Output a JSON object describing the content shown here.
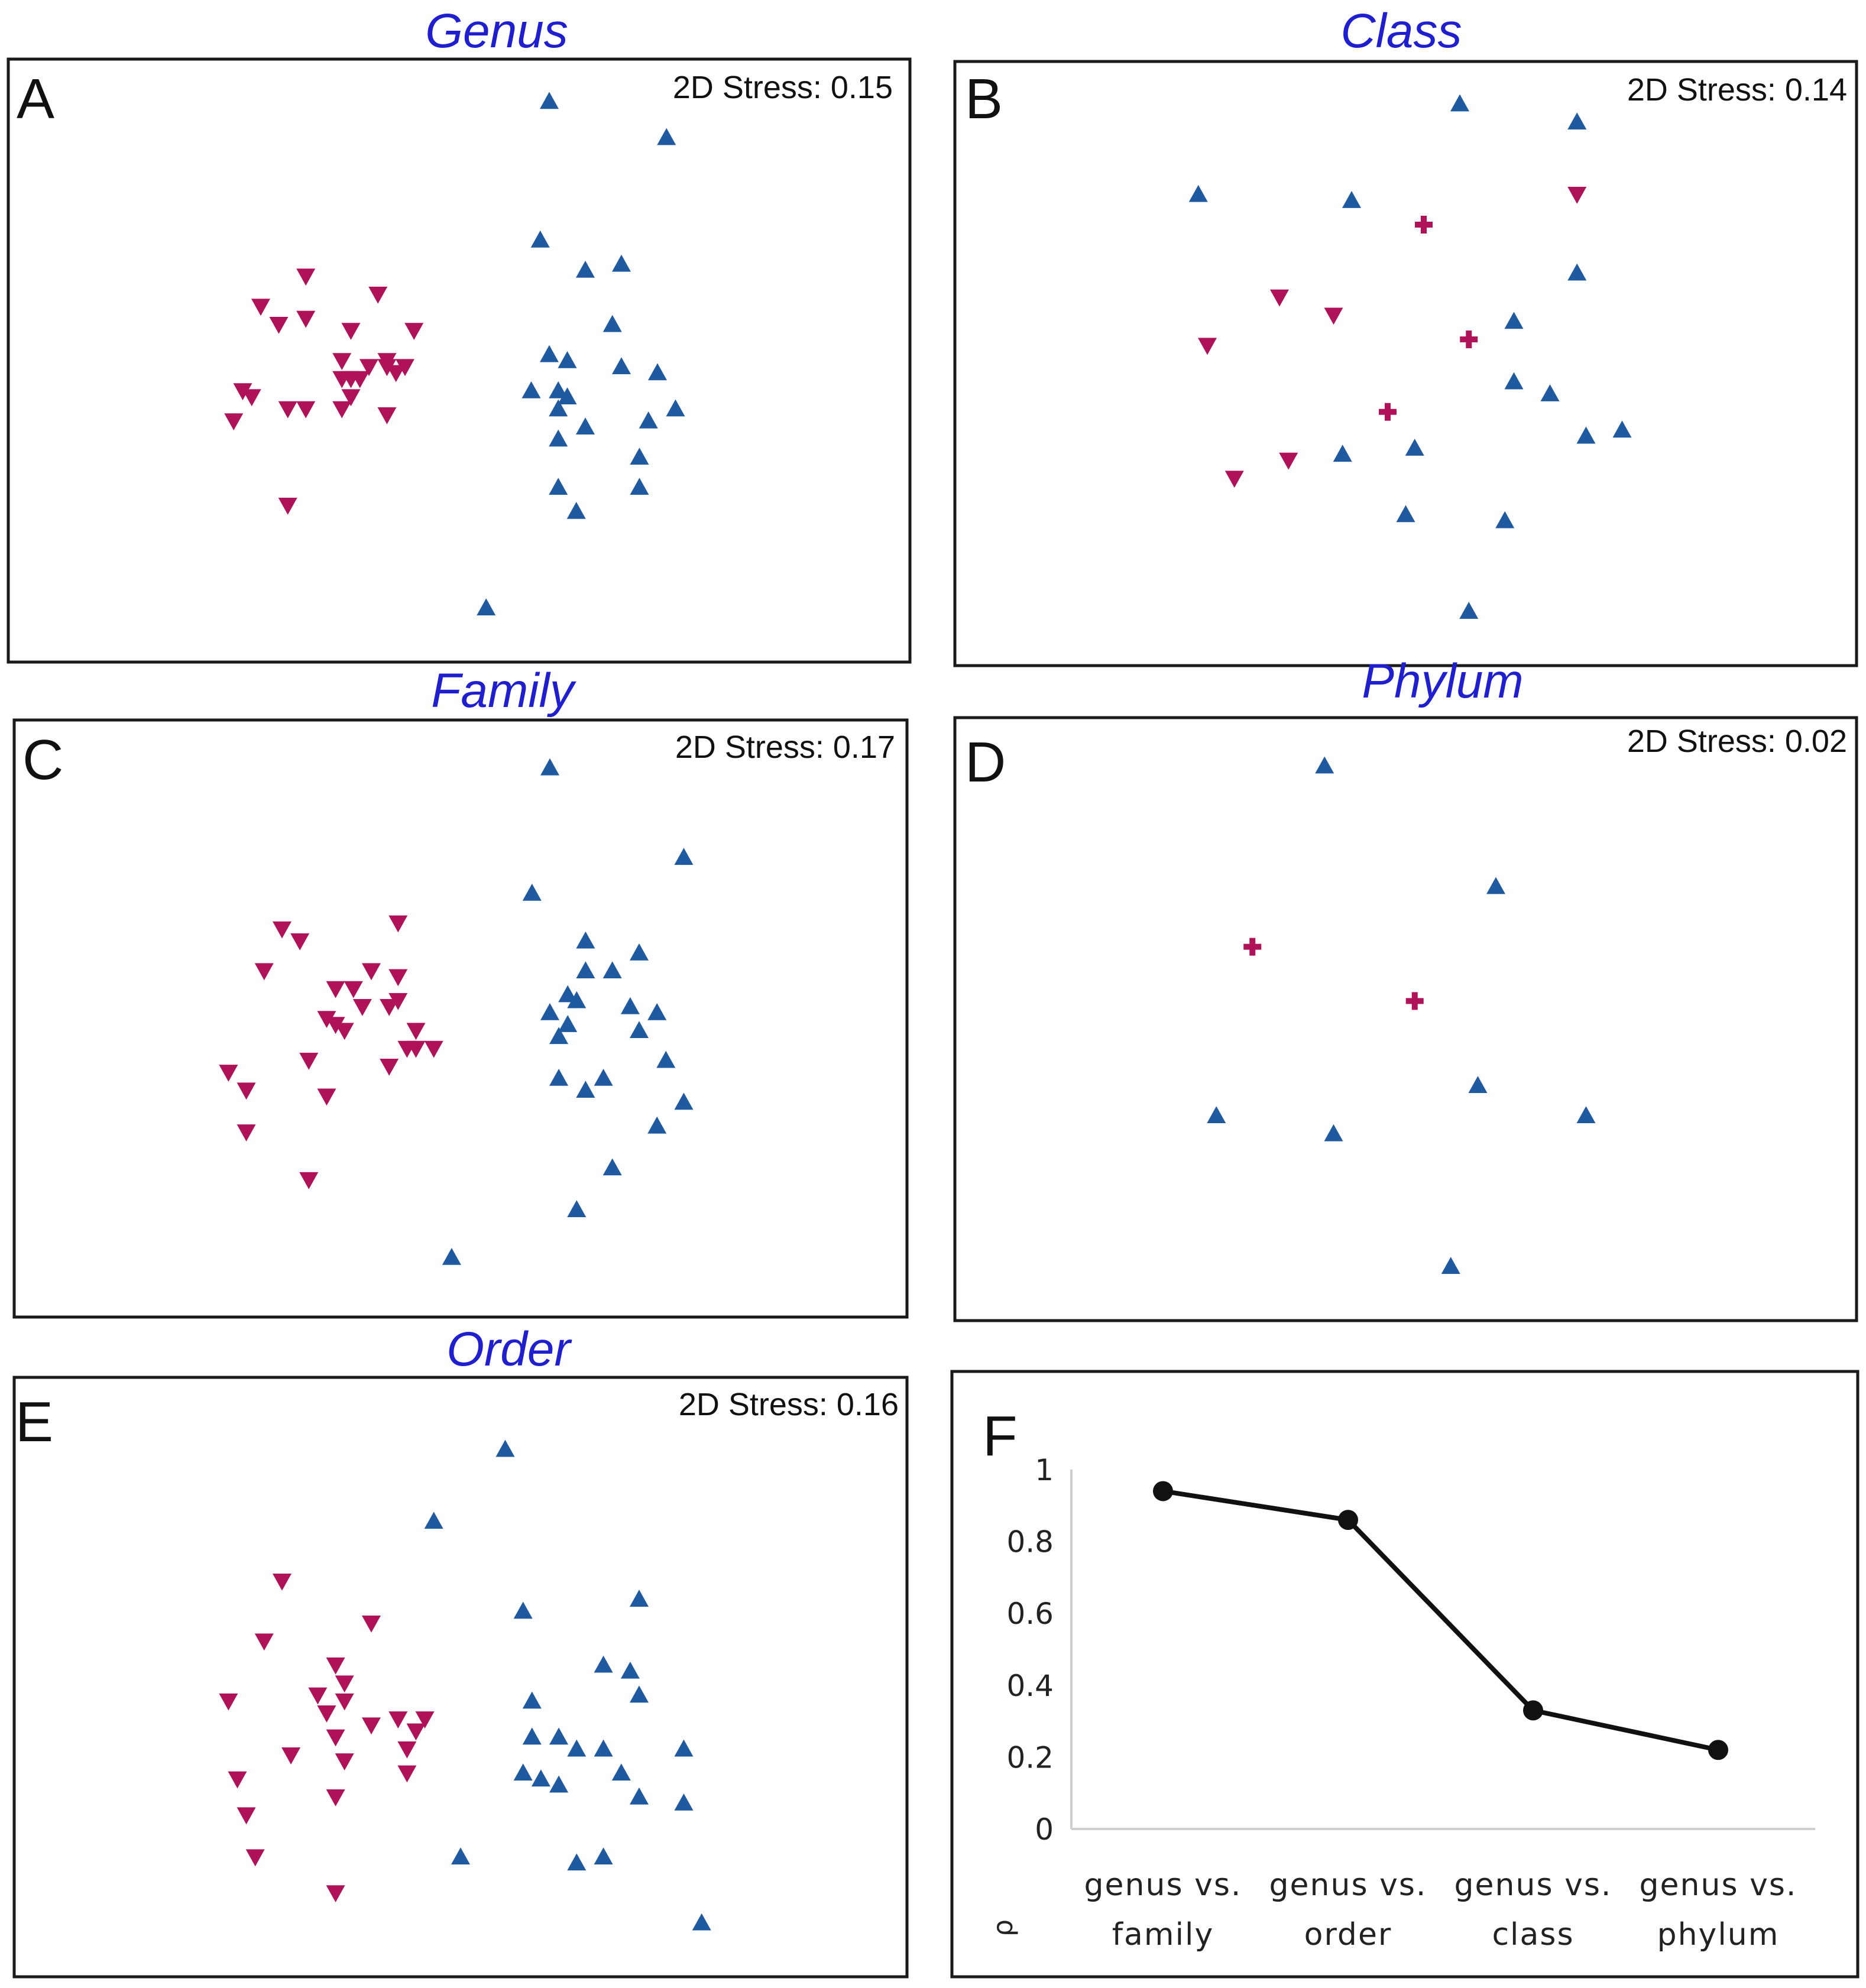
{
  "figure": {
    "colors": {
      "group1": "#b0125a",
      "group2": "#1f5aa0",
      "title": "#1f1fcf",
      "line": "#111111"
    }
  },
  "chart_data": [
    {
      "type": "scatter",
      "panel": "A",
      "title": "Genus",
      "stress": "2D Stress: 0.15",
      "xlim": [
        0,
        100
      ],
      "ylim": [
        0,
        100
      ],
      "series": [
        {
          "name": "group1",
          "marker": "triangle-down",
          "points": [
            [
              33,
              64
            ],
            [
              28,
              59
            ],
            [
              30,
              56
            ],
            [
              33,
              57
            ],
            [
              41,
              61
            ],
            [
              45,
              55
            ],
            [
              38,
              55
            ],
            [
              37,
              50
            ],
            [
              42,
              50
            ],
            [
              37,
              47
            ],
            [
              38,
              47
            ],
            [
              39,
              47
            ],
            [
              40,
              49
            ],
            [
              42,
              49
            ],
            [
              43,
              48
            ],
            [
              44,
              49
            ],
            [
              38,
              44
            ],
            [
              26,
              45
            ],
            [
              27,
              44
            ],
            [
              25,
              40
            ],
            [
              31,
              42
            ],
            [
              33,
              42
            ],
            [
              42,
              41
            ],
            [
              31,
              26
            ],
            [
              37,
              42
            ]
          ]
        },
        {
          "name": "group2",
          "marker": "triangle-up",
          "points": [
            [
              60,
              93
            ],
            [
              73,
              87
            ],
            [
              59,
              70
            ],
            [
              64,
              65
            ],
            [
              68,
              66
            ],
            [
              67,
              56
            ],
            [
              60,
              51
            ],
            [
              62,
              50
            ],
            [
              68,
              49
            ],
            [
              72,
              48
            ],
            [
              58,
              45
            ],
            [
              61,
              45
            ],
            [
              62,
              44
            ],
            [
              61,
              42
            ],
            [
              74,
              42
            ],
            [
              71,
              40
            ],
            [
              64,
              39
            ],
            [
              61,
              37
            ],
            [
              70,
              34
            ],
            [
              61,
              29
            ],
            [
              70,
              29
            ],
            [
              63,
              25
            ],
            [
              53,
              9
            ]
          ]
        }
      ]
    },
    {
      "type": "scatter",
      "panel": "B",
      "title": "Class",
      "stress": "2D Stress: 0.14",
      "xlim": [
        0,
        100
      ],
      "ylim": [
        0,
        100
      ],
      "series": [
        {
          "name": "group1",
          "marker": "triangle-down",
          "points": [
            [
              69,
              78
            ],
            [
              36,
              61
            ],
            [
              42,
              58
            ],
            [
              28,
              53
            ],
            [
              31,
              31
            ],
            [
              37,
              34
            ]
          ]
        },
        {
          "name": "group1-cross",
          "marker": "cross",
          "points": [
            [
              52,
              73
            ],
            [
              57,
              54
            ],
            [
              48,
              42
            ]
          ]
        },
        {
          "name": "group2",
          "marker": "triangle-up",
          "points": [
            [
              56,
              93
            ],
            [
              69,
              90
            ],
            [
              27,
              78
            ],
            [
              44,
              77
            ],
            [
              69,
              65
            ],
            [
              62,
              57
            ],
            [
              62,
              47
            ],
            [
              66,
              45
            ],
            [
              70,
              38
            ],
            [
              74,
              39
            ],
            [
              43,
              35
            ],
            [
              51,
              36
            ],
            [
              50,
              25
            ],
            [
              61,
              24
            ],
            [
              57,
              9
            ]
          ]
        }
      ]
    },
    {
      "type": "scatter",
      "panel": "C",
      "title": "Family",
      "stress": "2D Stress: 0.17",
      "xlim": [
        0,
        100
      ],
      "ylim": [
        0,
        100
      ],
      "series": [
        {
          "name": "group1",
          "marker": "triangle-down",
          "points": [
            [
              30,
              65
            ],
            [
              32,
              63
            ],
            [
              43,
              66
            ],
            [
              28,
              58
            ],
            [
              40,
              58
            ],
            [
              43,
              57
            ],
            [
              36,
              55
            ],
            [
              38,
              55
            ],
            [
              39,
              52
            ],
            [
              42,
              52
            ],
            [
              43,
              53
            ],
            [
              35,
              50
            ],
            [
              36,
              49
            ],
            [
              37,
              48
            ],
            [
              44,
              45
            ],
            [
              45,
              45
            ],
            [
              33,
              43
            ],
            [
              47,
              45
            ],
            [
              24,
              41
            ],
            [
              26,
              38
            ],
            [
              35,
              37
            ],
            [
              26,
              31
            ],
            [
              33,
              23
            ],
            [
              42,
              42
            ],
            [
              45,
              48
            ]
          ]
        },
        {
          "name": "group2",
          "marker": "triangle-up",
          "points": [
            [
              60,
              92
            ],
            [
              75,
              77
            ],
            [
              58,
              71
            ],
            [
              64,
              63
            ],
            [
              70,
              61
            ],
            [
              64,
              58
            ],
            [
              67,
              58
            ],
            [
              63,
              53
            ],
            [
              69,
              52
            ],
            [
              72,
              51
            ],
            [
              62,
              49
            ],
            [
              61,
              47
            ],
            [
              70,
              48
            ],
            [
              73,
              43
            ],
            [
              61,
              40
            ],
            [
              66,
              40
            ],
            [
              64,
              38
            ],
            [
              75,
              36
            ],
            [
              72,
              32
            ],
            [
              67,
              25
            ],
            [
              63,
              18
            ],
            [
              49,
              10
            ],
            [
              60,
              51
            ],
            [
              62,
              54
            ]
          ]
        }
      ]
    },
    {
      "type": "scatter",
      "panel": "D",
      "title": "Phylum",
      "stress": "2D Stress: 0.02",
      "xlim": [
        0,
        100
      ],
      "ylim": [
        0,
        100
      ],
      "series": [
        {
          "name": "group1-cross",
          "marker": "cross",
          "points": [
            [
              33,
              62
            ],
            [
              51,
              53
            ]
          ]
        },
        {
          "name": "group2",
          "marker": "triangle-up",
          "points": [
            [
              41,
              92
            ],
            [
              60,
              72
            ],
            [
              58,
              39
            ],
            [
              70,
              34
            ],
            [
              29,
              34
            ],
            [
              42,
              31
            ],
            [
              55,
              9
            ]
          ]
        }
      ]
    },
    {
      "type": "scatter",
      "panel": "E",
      "title": "Order",
      "stress": "2D Stress: 0.16",
      "xlim": [
        0,
        100
      ],
      "ylim": [
        0,
        100
      ],
      "series": [
        {
          "name": "group1",
          "marker": "triangle-down",
          "points": [
            [
              30,
              66
            ],
            [
              40,
              59
            ],
            [
              28,
              56
            ],
            [
              36,
              52
            ],
            [
              37,
              49
            ],
            [
              34,
              47
            ],
            [
              37,
              46
            ],
            [
              24,
              46
            ],
            [
              35,
              44
            ],
            [
              40,
              42
            ],
            [
              43,
              43
            ],
            [
              46,
              43
            ],
            [
              45,
              41
            ],
            [
              36,
              40
            ],
            [
              44,
              38
            ],
            [
              31,
              37
            ],
            [
              37,
              36
            ],
            [
              44,
              34
            ],
            [
              25,
              33
            ],
            [
              36,
              30
            ],
            [
              26,
              27
            ],
            [
              27,
              20
            ],
            [
              36,
              14
            ]
          ]
        },
        {
          "name": "group2",
          "marker": "triangle-up",
          "points": [
            [
              55,
              88
            ],
            [
              47,
              76
            ],
            [
              57,
              61
            ],
            [
              70,
              63
            ],
            [
              66,
              52
            ],
            [
              69,
              51
            ],
            [
              58,
              46
            ],
            [
              70,
              47
            ],
            [
              58,
              40
            ],
            [
              61,
              40
            ],
            [
              63,
              38
            ],
            [
              66,
              38
            ],
            [
              75,
              38
            ],
            [
              57,
              34
            ],
            [
              59,
              33
            ],
            [
              61,
              32
            ],
            [
              68,
              34
            ],
            [
              70,
              30
            ],
            [
              75,
              29
            ],
            [
              50,
              20
            ],
            [
              63,
              19
            ],
            [
              66,
              20
            ],
            [
              77,
              9
            ]
          ]
        }
      ]
    },
    {
      "type": "line",
      "panel": "F",
      "categories": [
        [
          "genus vs.",
          "family"
        ],
        [
          "genus vs.",
          "order"
        ],
        [
          "genus vs.",
          "class"
        ],
        [
          "genus vs.",
          "phylum"
        ]
      ],
      "values": [
        0.94,
        0.86,
        0.33,
        0.22
      ],
      "ylabel": "ρ",
      "ylim": [
        0,
        1
      ],
      "yticks": [
        "0",
        "0.2",
        "0.4",
        "0.6",
        "0.8",
        "1"
      ]
    }
  ]
}
